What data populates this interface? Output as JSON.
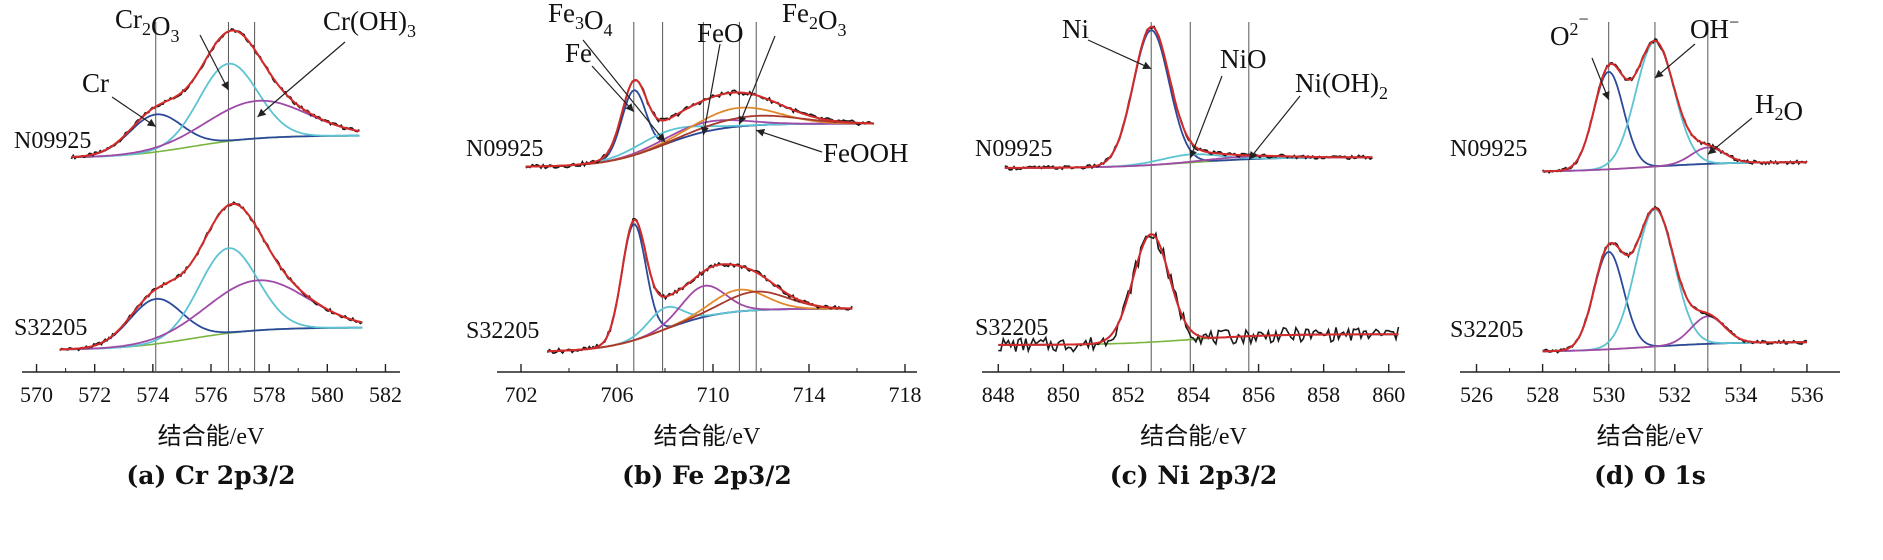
{
  "chart_data": [
    {
      "type": "line",
      "caption": "(a) Cr 2p3/2",
      "xlabel": "结合能/eV",
      "xticks": [
        570,
        572,
        574,
        576,
        578,
        580,
        582
      ],
      "xlim": [
        569.5,
        582.5
      ],
      "vlines": [
        574.1,
        576.6,
        577.5
      ],
      "samples": [
        {
          "name": "N09925",
          "x0": 571.2,
          "x1": 581.1,
          "components": [
            {
              "name": "Cr",
              "center": 574.1,
              "width": 0.9,
              "amp": 0.3,
              "color": "#2b4a9a"
            },
            {
              "name": "Cr2O3",
              "center": 576.6,
              "width": 1.0,
              "amp": 0.62,
              "color": "#5cc3d3"
            },
            {
              "name": "Cr(OH)3",
              "center": 577.6,
              "width": 1.7,
              "amp": 0.3,
              "color": "#a04aa8"
            }
          ]
        },
        {
          "name": "S32205",
          "x0": 570.8,
          "x1": 581.2,
          "components": [
            {
              "name": "Cr",
              "center": 574.1,
              "width": 0.9,
              "amp": 0.36,
              "color": "#2b4a9a"
            },
            {
              "name": "Cr2O3",
              "center": 576.6,
              "width": 1.0,
              "amp": 0.68,
              "color": "#5cc3d3"
            },
            {
              "name": "Cr(OH)3",
              "center": 577.6,
              "width": 1.7,
              "amp": 0.4,
              "color": "#a04aa8"
            }
          ]
        }
      ],
      "annotations": [
        {
          "label": "Cr",
          "peak": "Cr"
        },
        {
          "label": "Cr2O3",
          "peak": "Cr2O3"
        },
        {
          "label": "Cr(OH)3",
          "peak": "Cr(OH)3"
        }
      ]
    },
    {
      "type": "line",
      "caption": "(b) Fe 2p3/2",
      "xlabel": "结合能/eV",
      "xticks": [
        702,
        706,
        710,
        714,
        718
      ],
      "xlim": [
        701,
        718.5
      ],
      "vlines": [
        706.7,
        707.9,
        709.6,
        711.1,
        711.8
      ],
      "samples": [
        {
          "name": "N09925",
          "x0": 702.2,
          "x1": 716.7,
          "components": [
            {
              "name": "Fe",
              "center": 706.7,
              "width": 0.5,
              "amp": 0.42,
              "color": "#2b4a9a"
            },
            {
              "name": "Fe3O4",
              "center": 708.0,
              "width": 1.3,
              "amp": 0.08,
              "color": "#5cc3d3"
            },
            {
              "name": "FeO",
              "center": 709.6,
              "width": 1.6,
              "amp": 0.06,
              "color": "#a04aa8"
            },
            {
              "name": "Fe2O3",
              "center": 711.1,
              "width": 1.6,
              "amp": 0.12,
              "color": "#e08a2c"
            },
            {
              "name": "FeOOH",
              "center": 711.8,
              "width": 1.8,
              "amp": 0.06,
              "color": "#a83a2c"
            }
          ]
        },
        {
          "name": "S32205",
          "x0": 703.1,
          "x1": 715.8,
          "components": [
            {
              "name": "Fe",
              "center": 706.7,
              "width": 0.5,
              "amp": 0.75,
              "color": "#2b4a9a"
            },
            {
              "name": "Fe3O4",
              "center": 708.0,
              "width": 0.7,
              "amp": 0.14,
              "color": "#5cc3d3"
            },
            {
              "name": "FeO",
              "center": 709.6,
              "width": 0.9,
              "amp": 0.2,
              "color": "#a04aa8"
            },
            {
              "name": "Fe2O3",
              "center": 711.1,
              "width": 1.1,
              "amp": 0.14,
              "color": "#e08a2c"
            },
            {
              "name": "FeOOH",
              "center": 711.8,
              "width": 1.3,
              "amp": 0.12,
              "color": "#a83a2c"
            }
          ]
        }
      ],
      "annotations": [
        {
          "label": "Fe",
          "peak": "Fe"
        },
        {
          "label": "Fe3O4",
          "peak": "Fe3O4"
        },
        {
          "label": "FeO",
          "peak": "FeO"
        },
        {
          "label": "Fe2O3",
          "peak": "Fe2O3"
        },
        {
          "label": "FeOOH",
          "peak": "FeOOH"
        }
      ]
    },
    {
      "type": "line",
      "caption": "(c) Ni 2p3/2",
      "xlabel": "结合能/eV",
      "xticks": [
        848,
        850,
        852,
        854,
        856,
        858,
        860
      ],
      "xlim": [
        847.5,
        860.5
      ],
      "vlines": [
        852.7,
        853.9,
        855.7
      ],
      "samples": [
        {
          "name": "N09925",
          "x0": 848.2,
          "x1": 859.5,
          "components": [
            {
              "name": "Ni",
              "center": 852.7,
              "width": 0.55,
              "amp": 1.0,
              "color": "#2b4a9a"
            },
            {
              "name": "NiO",
              "center": 853.9,
              "width": 0.9,
              "amp": 0.06,
              "color": "#5cc3d3"
            },
            {
              "name": "Ni(OH)2",
              "center": 855.7,
              "width": 1.2,
              "amp": 0.02,
              "color": "#a04aa8"
            }
          ]
        },
        {
          "name": "S32205",
          "x0": 848.0,
          "x1": 860.3,
          "components": [
            {
              "name": "Ni",
              "center": 852.7,
              "width": 0.55,
              "amp": 0.8,
              "color": "#2b4a9a"
            }
          ]
        }
      ],
      "annotations": [
        {
          "label": "Ni",
          "peak": "Ni"
        },
        {
          "label": "NiO",
          "peak": "NiO"
        },
        {
          "label": "Ni(OH)2",
          "peak": "Ni(OH)2"
        }
      ]
    },
    {
      "type": "line",
      "caption": "(d) O 1s",
      "xlabel": "结合能/eV",
      "xticks": [
        526,
        528,
        530,
        532,
        534,
        536
      ],
      "xlim": [
        525.5,
        537
      ],
      "vlines": [
        530.0,
        531.4,
        533.0
      ],
      "samples": [
        {
          "name": "N09925",
          "x0": 528.0,
          "x1": 536.0,
          "components": [
            {
              "name": "O2-",
              "center": 530.0,
              "width": 0.45,
              "amp": 0.78,
              "color": "#2b4a9a"
            },
            {
              "name": "OH-",
              "center": 531.4,
              "width": 0.58,
              "amp": 1.0,
              "color": "#5cc3d3"
            },
            {
              "name": "H2O",
              "center": 533.0,
              "width": 0.5,
              "amp": 0.13,
              "color": "#a04aa8"
            }
          ]
        },
        {
          "name": "S32205",
          "x0": 528.0,
          "x1": 536.0,
          "components": [
            {
              "name": "O2-",
              "center": 530.0,
              "width": 0.45,
              "amp": 0.78,
              "color": "#2b4a9a"
            },
            {
              "name": "OH-",
              "center": 531.4,
              "width": 0.58,
              "amp": 1.1,
              "color": "#5cc3d3"
            },
            {
              "name": "H2O",
              "center": 533.0,
              "width": 0.5,
              "amp": 0.22,
              "color": "#a04aa8"
            }
          ]
        }
      ],
      "annotations": [
        {
          "label": "O2−",
          "peak": "O2-"
        },
        {
          "label": "OH−",
          "peak": "OH-"
        },
        {
          "label": "H2O",
          "peak": "H2O"
        }
      ]
    }
  ],
  "colors": {
    "measured": "#1a1a1a",
    "envelope": "#d42a2a",
    "background": "#7ab540",
    "fe_background": "#8a3a20"
  }
}
